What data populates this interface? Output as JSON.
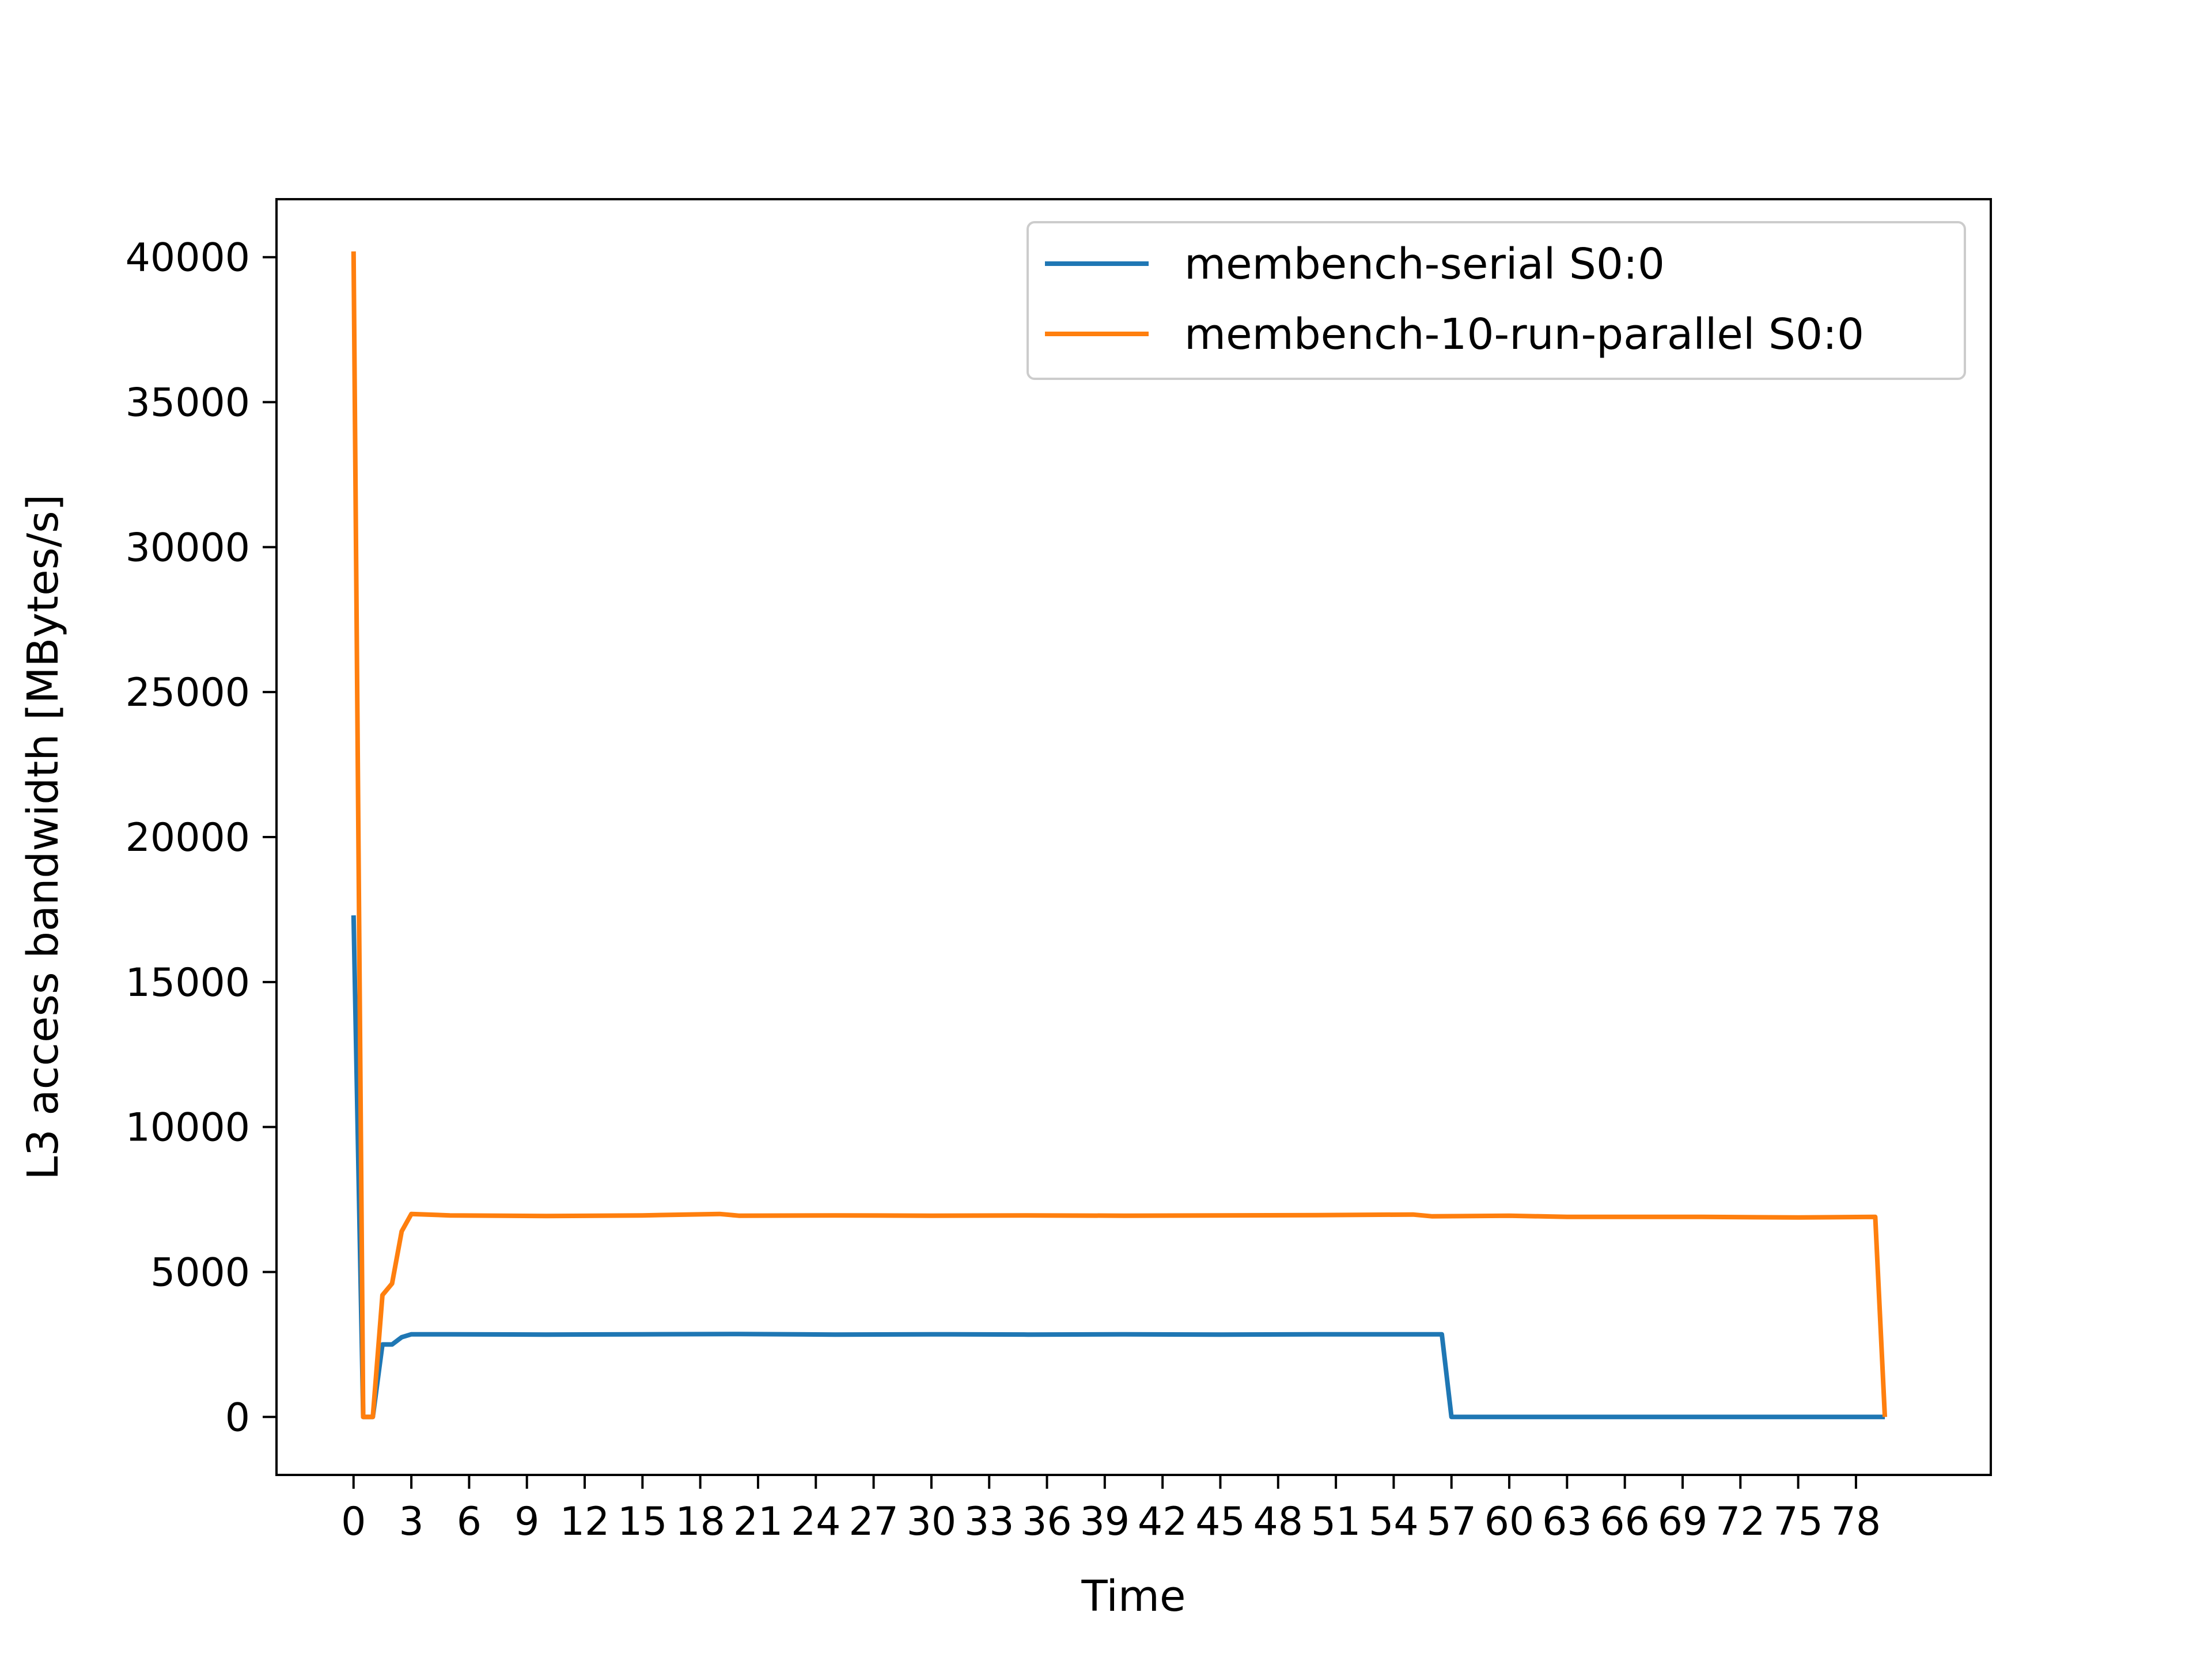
{
  "chart_data": {
    "type": "line",
    "xlabel": "Time",
    "ylabel": "L3 access bandwidth [MBytes/s]",
    "xlim": [
      -4,
      85
    ],
    "ylim": [
      -2000,
      42000
    ],
    "x_ticks": [
      0,
      3,
      6,
      9,
      12,
      15,
      18,
      21,
      24,
      27,
      30,
      33,
      36,
      39,
      42,
      45,
      48,
      51,
      54,
      57,
      60,
      63,
      66,
      69,
      72,
      75,
      78
    ],
    "y_ticks": [
      0,
      5000,
      10000,
      15000,
      20000,
      25000,
      30000,
      35000,
      40000
    ],
    "grid": false,
    "legend_position": "top-right",
    "series": [
      {
        "name": "membench-serial S0:0",
        "color": "#1f77b4",
        "x": [
          0,
          0.5,
          1,
          1.5,
          2,
          2.5,
          3,
          5,
          10,
          15,
          20,
          25,
          30,
          35,
          40,
          45,
          50,
          55,
          56.5,
          57,
          60,
          65,
          70,
          75,
          79.5
        ],
        "y": [
          17300,
          0,
          0,
          2500,
          2500,
          2750,
          2850,
          2850,
          2840,
          2850,
          2860,
          2840,
          2850,
          2840,
          2850,
          2840,
          2850,
          2850,
          2850,
          0,
          0,
          0,
          0,
          0,
          0
        ]
      },
      {
        "name": "membench-10-run-parallel S0:0",
        "color": "#ff7f0e",
        "x": [
          0,
          0.5,
          1,
          1.5,
          2,
          2.5,
          3,
          5,
          10,
          15,
          19,
          20,
          25,
          30,
          35,
          40,
          45,
          50,
          55,
          56,
          60,
          63,
          70,
          75,
          79,
          79.5
        ],
        "y": [
          40200,
          0,
          0,
          4200,
          4600,
          6400,
          7000,
          6950,
          6930,
          6950,
          7000,
          6940,
          6950,
          6940,
          6950,
          6940,
          6950,
          6960,
          6980,
          6920,
          6940,
          6900,
          6900,
          6880,
          6900,
          0
        ]
      }
    ]
  }
}
